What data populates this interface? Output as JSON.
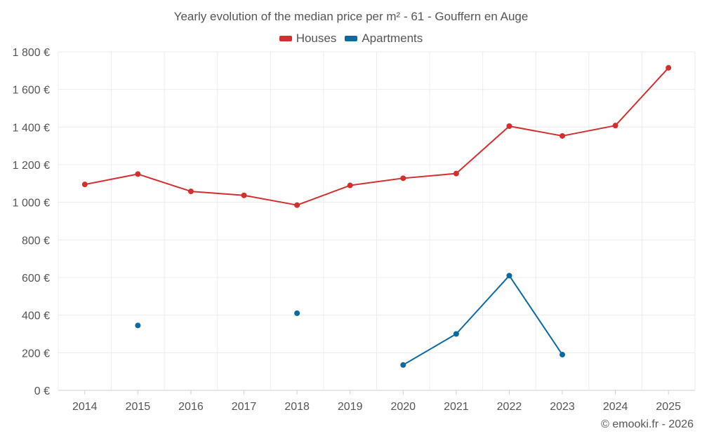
{
  "chart_data": {
    "type": "line",
    "title": "Yearly evolution of the median price per m² - 61 - Gouffern en Auge",
    "xlabel": "",
    "ylabel": "",
    "categories": [
      "2014",
      "2015",
      "2016",
      "2017",
      "2018",
      "2019",
      "2020",
      "2021",
      "2022",
      "2023",
      "2024",
      "2025"
    ],
    "ylim": [
      0,
      1800
    ],
    "yticks": [
      0,
      200,
      400,
      600,
      800,
      1000,
      1200,
      1400,
      1600,
      1800
    ],
    "ytick_labels": [
      "0 €",
      "200 €",
      "400 €",
      "600 €",
      "800 €",
      "1 000 €",
      "1 200 €",
      "1 400 €",
      "1 600 €",
      "1 800 €"
    ],
    "grid": true,
    "legend_position": "top-center",
    "series": [
      {
        "name": "Houses",
        "color": "#d32f2f",
        "values": [
          1095,
          1150,
          1058,
          1037,
          985,
          1090,
          1128,
          1153,
          1405,
          1353,
          1408,
          1715
        ]
      },
      {
        "name": "Apartments",
        "color": "#0a6aa1",
        "values": [
          null,
          345,
          null,
          null,
          410,
          null,
          135,
          300,
          610,
          190,
          null,
          null
        ]
      }
    ]
  },
  "footer": {
    "credit": "© emooki.fr - 2026"
  }
}
